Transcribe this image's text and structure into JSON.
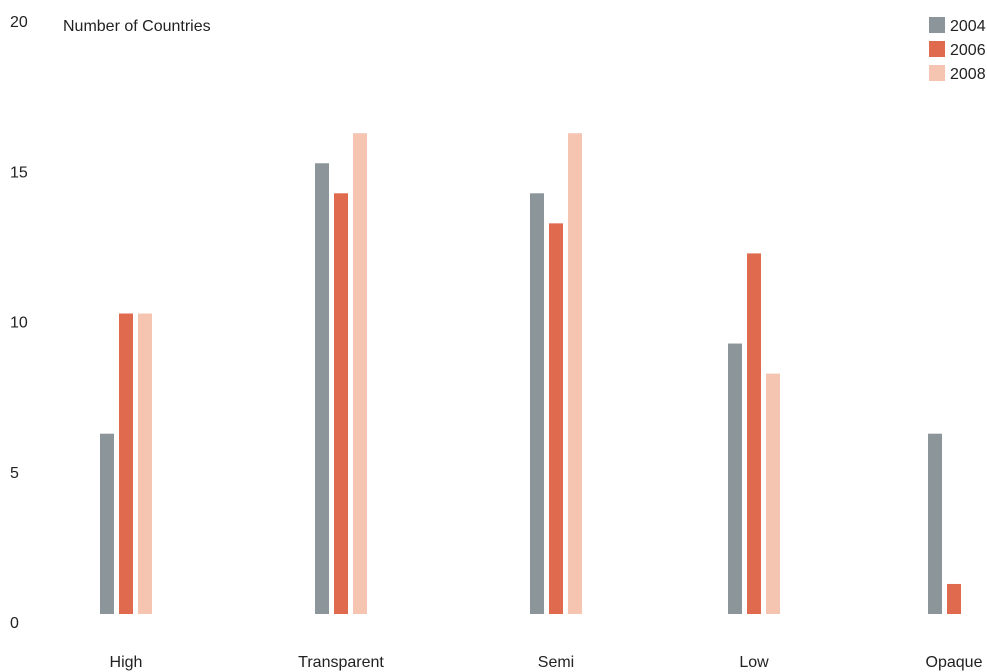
{
  "chart_data": {
    "type": "bar",
    "ylabel": "Number of Countries",
    "ylim": [
      0,
      20
    ],
    "yticks": [
      0,
      5,
      10,
      15,
      20
    ],
    "categories": [
      "High",
      "Transparent",
      "Semi",
      "Low",
      "Opaque"
    ],
    "series": [
      {
        "name": "2004",
        "color": "#8b959a",
        "values": [
          6,
          15,
          14,
          9,
          6
        ]
      },
      {
        "name": "2006",
        "color": "#e06a4e",
        "values": [
          10,
          14,
          13,
          12,
          1
        ]
      },
      {
        "name": "2008",
        "color": "#f5c5b2",
        "values": [
          10,
          16,
          16,
          8,
          0
        ]
      }
    ],
    "grid": false,
    "legend_position": "top-right"
  }
}
